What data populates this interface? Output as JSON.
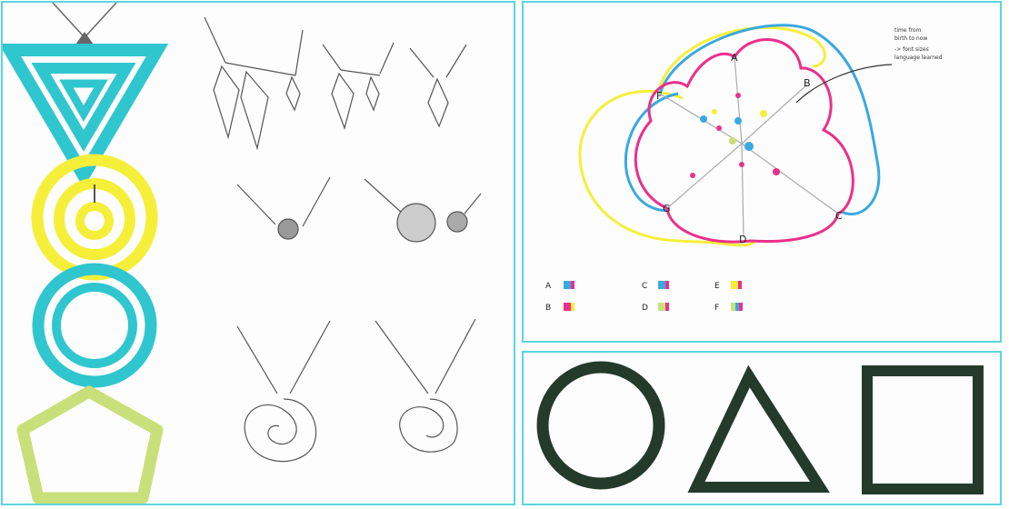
{
  "colors": {
    "teal": "#2fc6cf",
    "yellow": "#f5ef3a",
    "lime": "#c9e07a",
    "magenta": "#ec2f8a",
    "blue": "#3aa9df",
    "marker": "#243a2b",
    "pencil": "#555555",
    "border": "#5ad6dc"
  },
  "radial_diagram": {
    "nodes": [
      "A",
      "B",
      "C",
      "D",
      "G",
      "F"
    ],
    "note": [
      "time from",
      "birth to now",
      "-> font sizes",
      "language learned"
    ]
  },
  "legend": [
    {
      "label": "A",
      "swatch": [
        "#3aa9df",
        "#ec2f8a"
      ]
    },
    {
      "label": "B",
      "swatch": [
        "#ec2f8a",
        "#f5ef3a"
      ]
    },
    {
      "label": "C",
      "swatch": [
        "#3aa9df",
        "#ec2f8a"
      ]
    },
    {
      "label": "D",
      "swatch": [
        "#c9e07a",
        "#ec2f8a"
      ]
    },
    {
      "label": "E",
      "swatch": [
        "#f5ef3a",
        "#ec2f8a"
      ]
    },
    {
      "label": "F",
      "swatch": [
        "#c9e07a",
        "#3aa9df",
        "#ec2f8a"
      ]
    }
  ]
}
